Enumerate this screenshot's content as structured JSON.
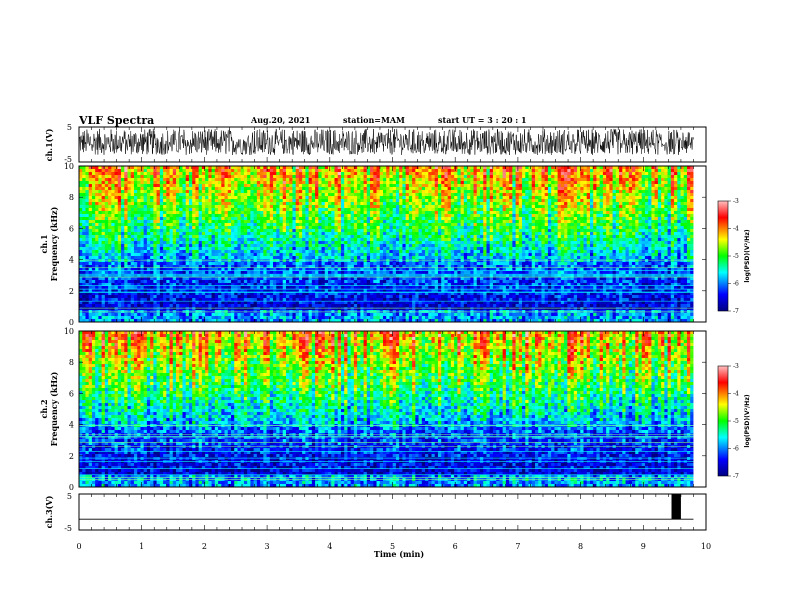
{
  "header": {
    "title": "VLF Spectra",
    "date": "Aug.20, 2021",
    "station": "station=MAM",
    "start": "start  UT  =   3  : 20 : 1"
  },
  "colors": {
    "spectrogram_scale": [
      "#000080",
      "#0000ff",
      "#00ffff",
      "#00ff00",
      "#ffff00",
      "#ff0000",
      "#ff8080"
    ]
  },
  "chart_data": [
    {
      "type": "line",
      "panel": "ch1-waveform",
      "ylabel": "ch.1(V)",
      "ylim": [
        -5,
        5
      ],
      "yticks": [
        "5",
        "-5"
      ],
      "xlim": [
        0,
        10
      ],
      "series": [
        {
          "description_values": "dense noise, mostly between -3 and 5 V"
        }
      ]
    },
    {
      "type": "heatmap",
      "panel": "ch1-spectrogram",
      "ylabel": "ch.1\nFrequency  (kHz)",
      "ylabel_line1": "ch.1",
      "ylabel_line2": "Frequency  (kHz)",
      "ylim": [
        0,
        10
      ],
      "yticks": [
        "0",
        "2",
        "4",
        "6",
        "8",
        "10"
      ],
      "xlim": [
        0,
        10
      ],
      "colorbar": {
        "label": "log(PSD)(V²/Hz)",
        "range": [
          -7,
          -3
        ],
        "ticks": [
          "-3",
          "-4",
          "-5",
          "-6",
          "-7"
        ]
      }
    },
    {
      "type": "heatmap",
      "panel": "ch2-spectrogram",
      "ylabel_line1": "ch.2",
      "ylabel_line2": "Frequency  (kHz)",
      "ylim": [
        0,
        10
      ],
      "yticks": [
        "0",
        "2",
        "4",
        "6",
        "8",
        "10"
      ],
      "xlim": [
        0,
        10
      ],
      "colorbar": {
        "label": "log(PSD)(V²/Hz)",
        "range": [
          -7,
          -3
        ],
        "ticks": [
          "-3",
          "-4",
          "-5",
          "-6",
          "-7"
        ]
      }
    },
    {
      "type": "line",
      "panel": "ch3-waveform",
      "ylabel": "ch.3(V)",
      "ylim": [
        -5,
        5
      ],
      "yticks": [
        "5",
        "-5"
      ],
      "xlim": [
        0,
        10
      ],
      "baseline": -2,
      "pulse": {
        "x_start": 9.45,
        "x_end": 9.6,
        "y_low": -2,
        "y_high": 5
      }
    }
  ],
  "xaxis": {
    "label": "Time  (min)",
    "ticks": [
      "0",
      "1",
      "2",
      "3",
      "4",
      "5",
      "6",
      "7",
      "8",
      "9",
      "10"
    ]
  }
}
